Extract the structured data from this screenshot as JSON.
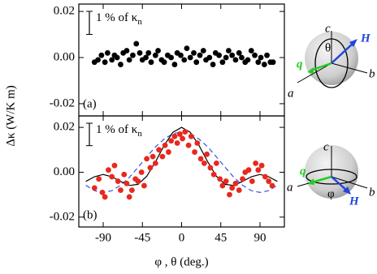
{
  "chart_data": [
    {
      "type": "scatter",
      "ylabel": "Δκ (W/K m)",
      "panel_label": "(a)",
      "scale_bar": {
        "value": 0.01,
        "text": "1 % of κ",
        "sub": "n"
      },
      "xlim": [
        -118,
        118
      ],
      "xticks": [
        -90,
        -45,
        0,
        45,
        90
      ],
      "ylim": [
        -0.0253,
        0.0232
      ],
      "yticks": [
        {
          "value": 0.02,
          "label": "0.02"
        },
        {
          "value": 0,
          "label": "0.00"
        },
        {
          "value": -0.02,
          "label": "-0.02"
        }
      ],
      "series": [
        {
          "style": "markers",
          "color": "#000000",
          "x": [
            -100,
            -96,
            -92,
            -88,
            -85,
            -80,
            -77,
            -74,
            -70,
            -67,
            -63,
            -60,
            -56,
            -52,
            -48,
            -45,
            -41,
            -38,
            -35,
            -30,
            -27,
            -23,
            -20,
            -16,
            -12,
            -8,
            -5,
            -1,
            3,
            6,
            10,
            14,
            17,
            21,
            25,
            28,
            32,
            36,
            39,
            43,
            47,
            51,
            54,
            58,
            62,
            66,
            69,
            73,
            76,
            80,
            84,
            88,
            91,
            95,
            98,
            102,
            105
          ],
          "values": [
            -0.002,
            -0.001,
            0.001,
            -0.002,
            0.002,
            -0.001,
            0.001,
            0.0,
            -0.003,
            0.002,
            0.003,
            -0.001,
            0.001,
            0.006,
            0.002,
            -0.001,
            0.0,
            0.002,
            -0.002,
            0.001,
            0.003,
            -0.001,
            -0.002,
            0.001,
            0.0,
            -0.003,
            0.002,
            0.001,
            -0.001,
            0.004,
            0.0,
            0.002,
            -0.002,
            0.001,
            0.003,
            -0.001,
            0.0,
            -0.003,
            0.002,
            0.001,
            -0.002,
            0.0,
            0.003,
            0.001,
            -0.001,
            0.002,
            0.0,
            -0.002,
            -0.001,
            0.003,
            0.001,
            -0.002,
            0.0,
            -0.003,
            0.001,
            -0.002,
            -0.002
          ]
        }
      ]
    },
    {
      "type": "scatter",
      "xlabel": "φ , θ (deg.)",
      "panel_label": "(b)",
      "scale_bar": {
        "value": 0.01,
        "text": "1 % of κ",
        "sub": "n"
      },
      "xlim": [
        -118,
        118
      ],
      "xticks": [
        -90,
        -45,
        0,
        45,
        90
      ],
      "ylim": [
        -0.0244,
        0.0251
      ],
      "yticks": [
        {
          "value": 0.02,
          "label": "0.02"
        },
        {
          "value": 0,
          "label": "0.00"
        },
        {
          "value": -0.02,
          "label": "-0.02"
        }
      ],
      "series": [
        {
          "style": "line",
          "color": "#3355dd",
          "dash": true,
          "x": [
            -110,
            -100,
            -90,
            -80,
            -70,
            -60,
            -50,
            -40,
            -30,
            -20,
            -10,
            0,
            10,
            20,
            30,
            40,
            50,
            60,
            70,
            80,
            90,
            100,
            110
          ],
          "values": [
            -0.0058,
            -0.0082,
            -0.009,
            -0.0082,
            -0.0058,
            -0.0023,
            0.0022,
            0.0068,
            0.0113,
            0.0148,
            0.0172,
            0.018,
            0.0172,
            0.0148,
            0.0113,
            0.0068,
            0.0022,
            -0.0023,
            -0.0058,
            -0.0082,
            -0.009,
            -0.0082,
            -0.0058
          ]
        },
        {
          "style": "line",
          "color": "#000000",
          "x": [
            -110,
            -100,
            -90,
            -80,
            -70,
            -60,
            -50,
            -40,
            -30,
            -20,
            -10,
            0,
            10,
            20,
            30,
            40,
            50,
            60,
            70,
            80,
            90,
            100,
            110
          ],
          "values": [
            -0.0041,
            -0.002,
            -0.001,
            -0.002,
            -0.0041,
            -0.0059,
            -0.0054,
            -0.0018,
            0.0046,
            0.012,
            0.0178,
            0.02,
            0.0178,
            0.012,
            0.0046,
            -0.0018,
            -0.0054,
            -0.0059,
            -0.0041,
            -0.002,
            -0.001,
            -0.002,
            -0.0041
          ]
        },
        {
          "style": "markers",
          "color": "#e8281e",
          "x": [
            -100,
            -95,
            -91,
            -88,
            -84,
            -80,
            -77,
            -73,
            -70,
            -66,
            -63,
            -60,
            -57,
            -53,
            -50,
            -46,
            -43,
            -40,
            -36,
            -33,
            -30,
            -26,
            -22,
            -19,
            -15,
            -12,
            -8,
            -5,
            -2,
            1,
            4,
            8,
            11,
            15,
            18,
            22,
            26,
            29,
            33,
            37,
            40,
            44,
            47,
            51,
            55,
            58,
            62,
            66,
            70,
            73,
            77,
            81,
            85,
            88,
            92,
            96,
            100,
            104
          ],
          "values": [
            -0.007,
            -0.003,
            -0.009,
            -0.011,
            0.001,
            -0.002,
            0.003,
            -0.004,
            -0.008,
            -0.001,
            -0.005,
            -0.011,
            -0.008,
            -0.003,
            -0.004,
            0.0,
            -0.006,
            0.006,
            0.002,
            0.007,
            0.004,
            0.01,
            0.007,
            0.012,
            0.009,
            0.014,
            0.016,
            0.013,
            0.017,
            0.015,
            0.018,
            0.012,
            0.016,
            0.009,
            0.013,
            0.006,
            0.004,
            0.008,
            0.002,
            -0.001,
            0.004,
            -0.003,
            -0.006,
            -0.004,
            -0.01,
            -0.007,
            -0.005,
            -0.008,
            -0.003,
            0.0,
            0.001,
            -0.004,
            0.004,
            0.001,
            0.003,
            -0.002,
            -0.004,
            -0.006
          ]
        }
      ]
    }
  ],
  "insets": [
    {
      "c": "c",
      "angle": "θ",
      "field": "H",
      "heat": "q",
      "a": "a",
      "b": "b"
    },
    {
      "c": "c",
      "angle": "φ",
      "field": "H",
      "heat": "q",
      "a": "a",
      "b": "b"
    }
  ]
}
